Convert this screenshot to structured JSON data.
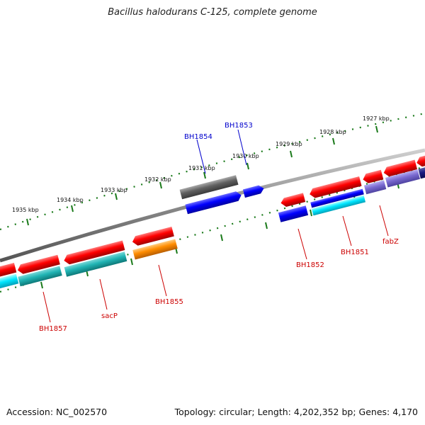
{
  "title": "Bacillus halodurans C-125, complete genome",
  "accession_text": "Accession: NC_002570",
  "summary_text": "Topology: circular; Length: 4,202,352 bp; Genes: 4,170",
  "colors": {
    "backbone": "#8a8a8a",
    "ticks": "#1a7a1a",
    "label_red": "#cc0000",
    "label_blue": "#0000cc"
  },
  "scale_labels": [
    "1935 kbp",
    "1934 kbp",
    "1933 kbp",
    "1932 kbp",
    "1931 kbp",
    "1930 kbp",
    "1929 kbp",
    "1928 kbp",
    "1927 kbp"
  ],
  "gene_labels": [
    {
      "text": "BH1854",
      "color": "blue"
    },
    {
      "text": "BH1853",
      "color": "blue"
    },
    {
      "text": "BH1857",
      "color": "red"
    },
    {
      "text": "sacP",
      "color": "red"
    },
    {
      "text": "BH1855",
      "color": "red"
    },
    {
      "text": "BH1852",
      "color": "red"
    },
    {
      "text": "BH1851",
      "color": "red"
    },
    {
      "text": "fabZ",
      "color": "red"
    }
  ],
  "features": [
    {
      "name": "gene-forward",
      "color": "#e00000"
    },
    {
      "name": "cds-forward",
      "color": "#00c8d8"
    },
    {
      "name": "gene-reverse",
      "color": "#0000e0"
    },
    {
      "name": "cds-gray",
      "color": "#606060"
    },
    {
      "name": "cds-orange",
      "color": "#ff8c00"
    },
    {
      "name": "cds-teal",
      "color": "#1aa5a5"
    },
    {
      "name": "cds-purple",
      "color": "#7a6ad0"
    }
  ]
}
